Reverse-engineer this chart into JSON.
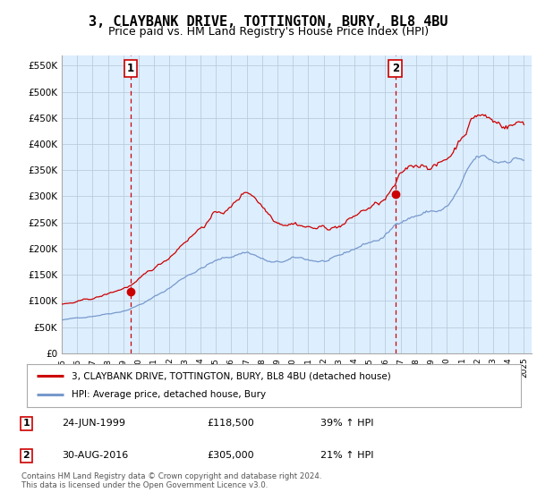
{
  "title": "3, CLAYBANK DRIVE, TOTTINGTON, BURY, BL8 4BU",
  "subtitle": "Price paid vs. HM Land Registry's House Price Index (HPI)",
  "title_fontsize": 11,
  "subtitle_fontsize": 9,
  "ylim": [
    0,
    570000
  ],
  "yticks": [
    0,
    50000,
    100000,
    150000,
    200000,
    250000,
    300000,
    350000,
    400000,
    450000,
    500000,
    550000
  ],
  "ytick_labels": [
    "£0",
    "£50K",
    "£100K",
    "£150K",
    "£200K",
    "£250K",
    "£300K",
    "£350K",
    "£400K",
    "£450K",
    "£500K",
    "£550K"
  ],
  "xlim_start": 1995.0,
  "xlim_end": 2025.5,
  "sale1_x": 1999.48,
  "sale1_y": 118500,
  "sale1_label": "1",
  "sale1_date": "24-JUN-1999",
  "sale1_price": "£118,500",
  "sale1_hpi": "39% ↑ HPI",
  "sale2_x": 2016.66,
  "sale2_y": 305000,
  "sale2_label": "2",
  "sale2_date": "30-AUG-2016",
  "sale2_price": "£305,000",
  "sale2_hpi": "21% ↑ HPI",
  "red_color": "#cc0000",
  "blue_color": "#7799cc",
  "chart_bg": "#ddeeff",
  "grid_color": "#bbccdd",
  "outer_bg": "#ffffff",
  "legend_label_red": "3, CLAYBANK DRIVE, TOTTINGTON, BURY, BL8 4BU (detached house)",
  "legend_label_blue": "HPI: Average price, detached house, Bury",
  "footer": "Contains HM Land Registry data © Crown copyright and database right 2024.\nThis data is licensed under the Open Government Licence v3.0."
}
